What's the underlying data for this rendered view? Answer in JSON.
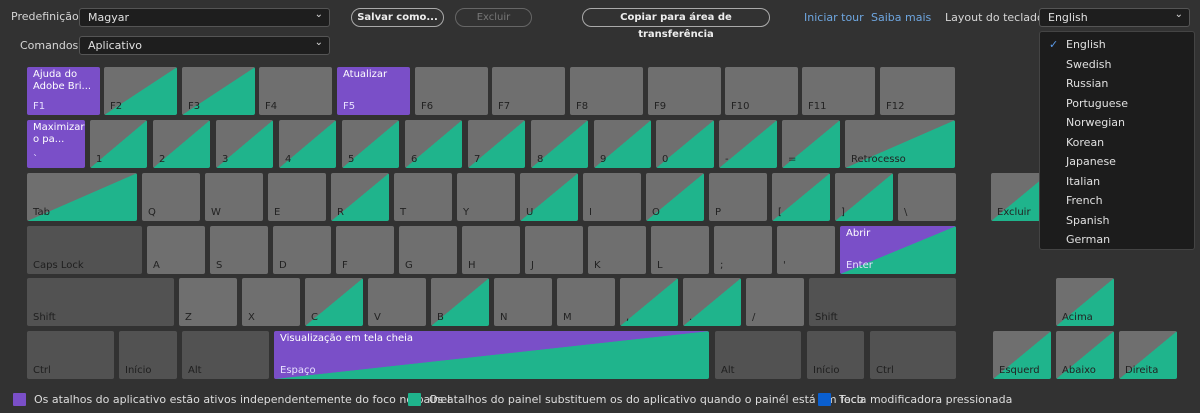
{
  "toolbar": {
    "preset_label": "Predefinição:",
    "preset_value": "Magyar",
    "commands_label": "Comandos:",
    "commands_value": "Aplicativo",
    "save_as": "Salvar como...",
    "delete": "Excluir",
    "copy": "Copiar para área de transferência",
    "start_tour": "Iniciar tour",
    "learn_more": "Saiba mais",
    "layout_label": "Layout do teclado:",
    "layout_value": "English"
  },
  "layout_menu": {
    "selected": "English",
    "options": [
      "English",
      "Swedish",
      "Russian",
      "Portuguese",
      "Norwegian",
      "Korean",
      "Japanese",
      "Italian",
      "French",
      "Spanish",
      "German"
    ]
  },
  "colors": {
    "app": "#7a4fc8",
    "panel": "#1fb48c",
    "modifier": "#0a5fd0",
    "key": "#6f6f6f",
    "modifier_key": "#525252"
  },
  "keys": [
    {
      "name": "F1",
      "type": "app",
      "cmd": "Ajuda do Adobe Bri..."
    },
    {
      "name": "F2",
      "type": "panel"
    },
    {
      "name": "F3",
      "type": "panel"
    },
    {
      "name": "F4",
      "type": "plain"
    },
    {
      "name": "F5",
      "type": "app",
      "cmd": "Atualizar"
    },
    {
      "name": "F6",
      "type": "plain"
    },
    {
      "name": "F7",
      "type": "plain"
    },
    {
      "name": "F8",
      "type": "plain"
    },
    {
      "name": "F9",
      "type": "plain"
    },
    {
      "name": "F10",
      "type": "plain"
    },
    {
      "name": "F11",
      "type": "plain"
    },
    {
      "name": "F12",
      "type": "plain"
    },
    {
      "name": "`",
      "type": "app",
      "cmd": "Maximizar o pa..."
    },
    {
      "name": "1",
      "type": "panel"
    },
    {
      "name": "2",
      "type": "panel"
    },
    {
      "name": "3",
      "type": "panel"
    },
    {
      "name": "4",
      "type": "panel"
    },
    {
      "name": "5",
      "type": "panel"
    },
    {
      "name": "6",
      "type": "panel"
    },
    {
      "name": "7",
      "type": "panel"
    },
    {
      "name": "8",
      "type": "panel"
    },
    {
      "name": "9",
      "type": "panel"
    },
    {
      "name": "0",
      "type": "panel"
    },
    {
      "name": "-",
      "type": "panel"
    },
    {
      "name": "=",
      "type": "panel"
    },
    {
      "name": "Retrocesso",
      "type": "panel"
    },
    {
      "name": "Tab",
      "type": "panel"
    },
    {
      "name": "Q",
      "type": "plain"
    },
    {
      "name": "W",
      "type": "plain"
    },
    {
      "name": "E",
      "type": "plain"
    },
    {
      "name": "R",
      "type": "panel"
    },
    {
      "name": "T",
      "type": "plain"
    },
    {
      "name": "Y",
      "type": "plain"
    },
    {
      "name": "U",
      "type": "panel"
    },
    {
      "name": "I",
      "type": "plain"
    },
    {
      "name": "O",
      "type": "panel"
    },
    {
      "name": "P",
      "type": "plain"
    },
    {
      "name": "[",
      "type": "panel"
    },
    {
      "name": "]",
      "type": "panel"
    },
    {
      "name": "\\",
      "type": "plain"
    },
    {
      "name": "Excluir",
      "type": "panel"
    },
    {
      "name": "Caps Lock",
      "type": "mod"
    },
    {
      "name": "A",
      "type": "plain"
    },
    {
      "name": "S",
      "type": "plain"
    },
    {
      "name": "D",
      "type": "plain"
    },
    {
      "name": "F",
      "type": "plain"
    },
    {
      "name": "G",
      "type": "plain"
    },
    {
      "name": "H",
      "type": "plain"
    },
    {
      "name": "J",
      "type": "plain"
    },
    {
      "name": "K",
      "type": "plain"
    },
    {
      "name": "L",
      "type": "plain"
    },
    {
      "name": ";",
      "type": "plain"
    },
    {
      "name": "'",
      "type": "plain"
    },
    {
      "name": "Enter",
      "type": "both",
      "cmd": "Abrir"
    },
    {
      "name": "Shift",
      "type": "mod"
    },
    {
      "name": "Z",
      "type": "plain"
    },
    {
      "name": "X",
      "type": "plain"
    },
    {
      "name": "C",
      "type": "panel"
    },
    {
      "name": "V",
      "type": "plain"
    },
    {
      "name": "B",
      "type": "panel"
    },
    {
      "name": "N",
      "type": "plain"
    },
    {
      "name": "M",
      "type": "plain"
    },
    {
      "name": ",",
      "type": "panel"
    },
    {
      "name": ".",
      "type": "panel"
    },
    {
      "name": "/",
      "type": "plain"
    },
    {
      "name": "Shift",
      "type": "mod"
    },
    {
      "name": "Acima",
      "type": "panel"
    },
    {
      "name": "Ctrl",
      "type": "mod"
    },
    {
      "name": "Início",
      "type": "mod"
    },
    {
      "name": "Alt",
      "type": "mod"
    },
    {
      "name": "Espaço",
      "type": "both",
      "cmd": "Visualização em tela cheia"
    },
    {
      "name": "Alt",
      "type": "mod"
    },
    {
      "name": "Início",
      "type": "mod"
    },
    {
      "name": "Ctrl",
      "type": "mod"
    },
    {
      "name": "Esquerd",
      "type": "panel"
    },
    {
      "name": "Abaixo",
      "type": "panel"
    },
    {
      "name": "Direita",
      "type": "panel"
    }
  ],
  "legend": [
    {
      "text": "Os atalhos do aplicativo estão ativos independentemente do foco no painel",
      "color": "#7a4fc8"
    },
    {
      "text": "Os atalhos do painel substituem os do aplicativo quando o painél está em foco",
      "color": "#1fb48c"
    },
    {
      "text": "Tecla modificadora pressionada",
      "color": "#0a5fd0"
    }
  ]
}
